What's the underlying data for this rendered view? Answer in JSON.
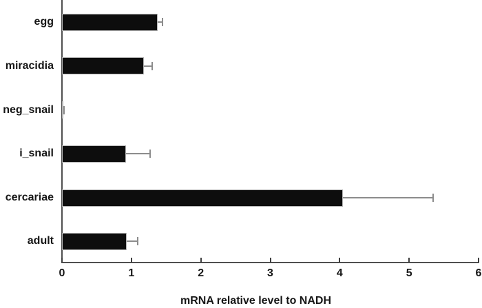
{
  "chart_data": {
    "type": "bar",
    "orientation": "horizontal",
    "title": "",
    "xlabel": "mRNA relative level to NADH",
    "ylabel": "",
    "categories": [
      "egg",
      "miracidia",
      "neg_snail",
      "i_snail",
      "cercariae",
      "adult"
    ],
    "values": [
      1.38,
      1.18,
      0.02,
      0.92,
      4.05,
      0.93
    ],
    "errors": [
      0.07,
      0.12,
      0.01,
      0.35,
      1.3,
      0.16
    ],
    "xlim": [
      0,
      6
    ],
    "xticks": [
      0,
      1,
      2,
      3,
      4,
      5,
      6
    ],
    "grid": false,
    "legend": "none",
    "bar_color": "#0d0d0d",
    "error_color": "#8c8c8c",
    "axis_color": "#4f4f4f"
  }
}
